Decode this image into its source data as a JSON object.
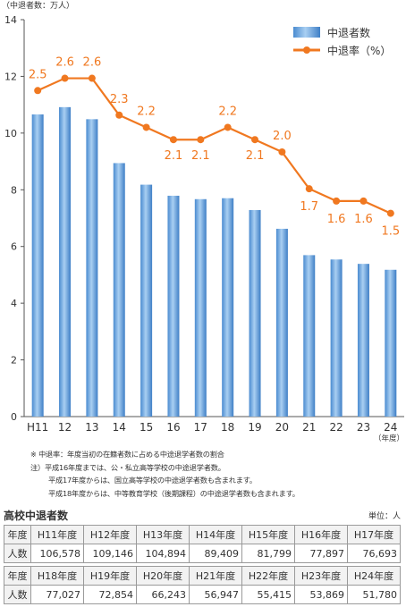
{
  "chart_data": {
    "type": "bar+line",
    "yaxis_unit_label": "（中退者数：万人）",
    "categories": [
      "H11",
      "12",
      "13",
      "14",
      "15",
      "16",
      "17",
      "18",
      "19",
      "20",
      "21",
      "22",
      "23",
      "24"
    ],
    "x_unit_label": "（年度）",
    "ylim": [
      0,
      14
    ],
    "yticks": [
      "0",
      "2",
      "4",
      "6",
      "8",
      "10",
      "12",
      "14"
    ],
    "grid": false,
    "legend_position": "top-right",
    "series": [
      {
        "name": "中退者数",
        "type": "bar",
        "color": "#5b9bd5",
        "values": [
          10.6578,
          10.9146,
          10.4894,
          8.9409,
          8.1799,
          7.7897,
          7.6693,
          7.7027,
          7.2854,
          6.6243,
          5.6947,
          5.5415,
          5.3869,
          5.178
        ]
      },
      {
        "name": "中退率（%）",
        "type": "line",
        "color": "#f07820",
        "values": [
          2.5,
          2.6,
          2.6,
          2.3,
          2.2,
          2.1,
          2.1,
          2.2,
          2.1,
          2.0,
          1.7,
          1.6,
          1.6,
          1.5
        ],
        "labels": [
          "2.5",
          "2.6",
          "2.6",
          "2.3",
          "2.2",
          "2.1",
          "2.1",
          "2.2",
          "2.1",
          "2.0",
          "1.7",
          "1.6",
          "1.6",
          "1.5"
        ]
      }
    ]
  },
  "notes": [
    "※ 中退率：年度当初の在籍者数に占める中途退学者数の割合",
    "注）平成16年度までは、公・私立高等学校の中途退学者数。",
    "平成17年度からは、国立高等学校の中途退学者数も含まれます。",
    "平成18年度からは、中等教育学校（後期課程）の中途退学者数も含まれます。"
  ],
  "table": {
    "title": "高校中退者数",
    "unit": "単位：人",
    "row1_head": "年度",
    "row2_head": "人数",
    "part1": {
      "years": [
        "H11年度",
        "H12年度",
        "H13年度",
        "H14年度",
        "H15年度",
        "H16年度",
        "H17年度"
      ],
      "counts": [
        "106,578",
        "109,146",
        "104,894",
        "89,409",
        "81,799",
        "77,897",
        "76,693"
      ]
    },
    "part2": {
      "years": [
        "H18年度",
        "H19年度",
        "H20年度",
        "H21年度",
        "H22年度",
        "H23年度",
        "H24年度"
      ],
      "counts": [
        "77,027",
        "72,854",
        "66,243",
        "56,947",
        "55,415",
        "53,869",
        "51,780"
      ]
    }
  }
}
